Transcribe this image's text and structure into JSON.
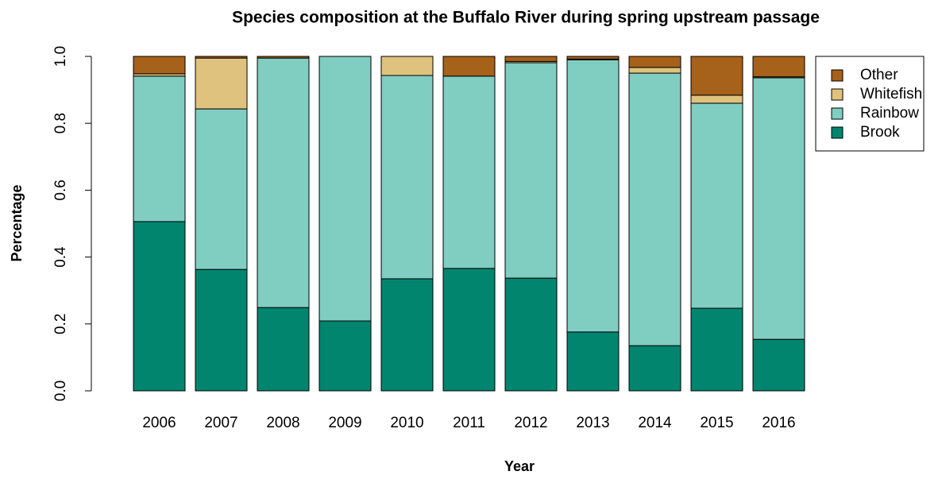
{
  "chart_data": {
    "type": "stacked-bar",
    "title": "Species composition at the Buffalo River during spring upstream passage",
    "x_label": "Year",
    "y_label": "Percentage",
    "categories": [
      "2006",
      "2007",
      "2008",
      "2009",
      "2010",
      "2011",
      "2012",
      "2013",
      "2014",
      "2015",
      "2016"
    ],
    "series": [
      {
        "name": "Brook",
        "color": "#01856f",
        "values": [
          0.506,
          0.363,
          0.249,
          0.209,
          0.335,
          0.366,
          0.337,
          0.176,
          0.135,
          0.247,
          0.154
        ]
      },
      {
        "name": "Rainbow",
        "color": "#80cdc1",
        "values": [
          0.435,
          0.48,
          0.746,
          0.791,
          0.608,
          0.575,
          0.644,
          0.814,
          0.815,
          0.613,
          0.782
        ]
      },
      {
        "name": "Whitefish",
        "color": "#dfc27d",
        "values": [
          0.007,
          0.152,
          0,
          0,
          0.057,
          0,
          0.004,
          0.002,
          0.017,
          0.024,
          0.003
        ]
      },
      {
        "name": "Other",
        "color": "#a6611a",
        "values": [
          0.052,
          0.005,
          0.005,
          0,
          0,
          0.059,
          0.015,
          0.008,
          0.033,
          0.116,
          0.061
        ]
      }
    ],
    "ylim": [
      0,
      1
    ],
    "yticks": [
      {
        "value": 0,
        "label": "0.0"
      },
      0.2,
      0.4,
      0.6,
      0.8,
      {
        "value": 1,
        "label": "1.0"
      }
    ],
    "legend": "top-right-outside"
  }
}
